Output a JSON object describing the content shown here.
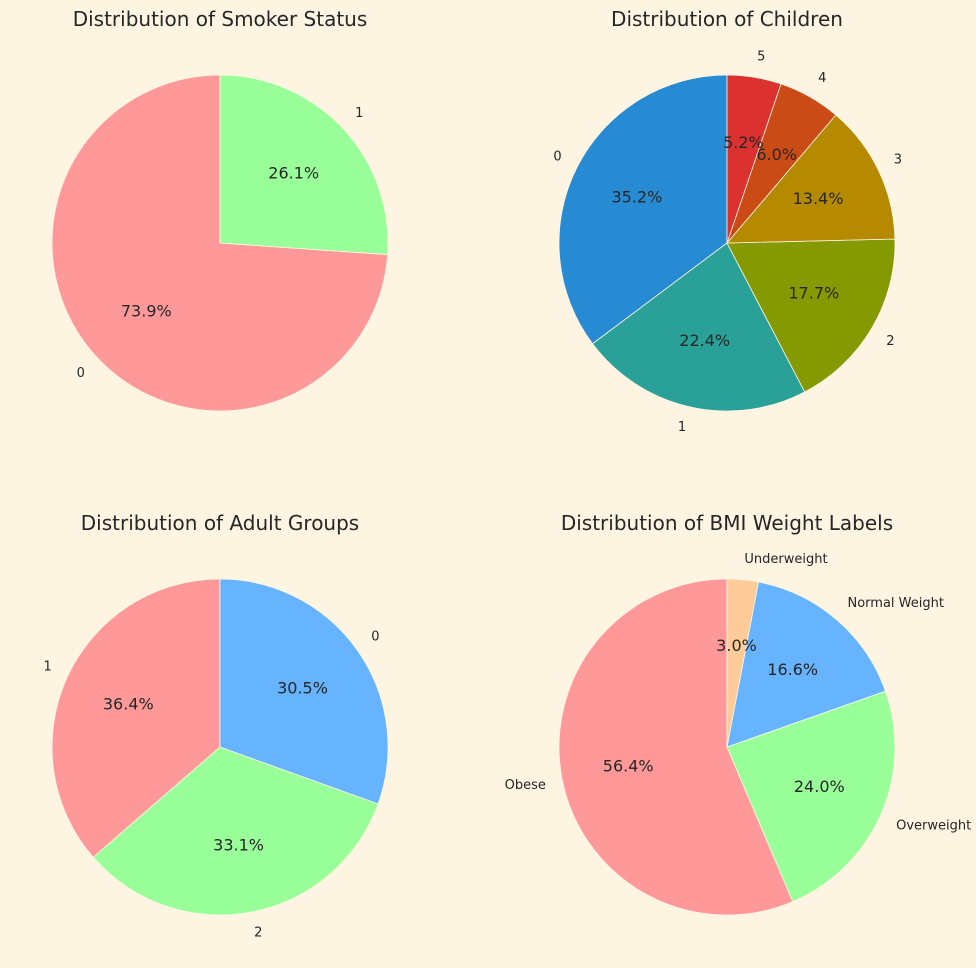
{
  "chart_data": [
    {
      "type": "pie",
      "title": "Distribution of Smoker Status",
      "labels": [
        "0",
        "1"
      ],
      "values": [
        73.9,
        26.1
      ],
      "percent_labels": [
        "73.9%",
        "26.1%"
      ],
      "colors": [
        "#ff9999",
        "#99ff99"
      ],
      "start_angle": 90,
      "direction": "counterclockwise"
    },
    {
      "type": "pie",
      "title": "Distribution of Children",
      "labels": [
        "0",
        "1",
        "2",
        "3",
        "4",
        "5"
      ],
      "values": [
        35.2,
        22.4,
        17.7,
        13.4,
        6.0,
        5.2
      ],
      "percent_labels": [
        "35.2%",
        "22.4%",
        "17.7%",
        "13.4%",
        "6.0%",
        "5.2%"
      ],
      "colors": [
        "#268bd2",
        "#2aa198",
        "#859900",
        "#b58900",
        "#cb4b16",
        "#dc322f"
      ],
      "start_angle": 90,
      "direction": "counterclockwise"
    },
    {
      "type": "pie",
      "title": "Distribution of Adult Groups",
      "labels": [
        "1",
        "2",
        "0"
      ],
      "values": [
        36.4,
        33.1,
        30.5
      ],
      "percent_labels": [
        "36.4%",
        "33.1%",
        "30.5%"
      ],
      "colors": [
        "#ff9999",
        "#99ff99",
        "#66b3ff"
      ],
      "start_angle": 90,
      "direction": "counterclockwise"
    },
    {
      "type": "pie",
      "title": "Distribution of BMI Weight Labels",
      "labels": [
        "Obese",
        "Overweight",
        "Normal Weight",
        "Underweight"
      ],
      "values": [
        56.4,
        24.0,
        16.6,
        3.0
      ],
      "percent_labels": [
        "56.4%",
        "24.0%",
        "16.6%",
        "3.0%"
      ],
      "colors": [
        "#ff9999",
        "#99ff99",
        "#66b3ff",
        "#ffcc99"
      ],
      "start_angle": 90,
      "direction": "counterclockwise"
    }
  ]
}
